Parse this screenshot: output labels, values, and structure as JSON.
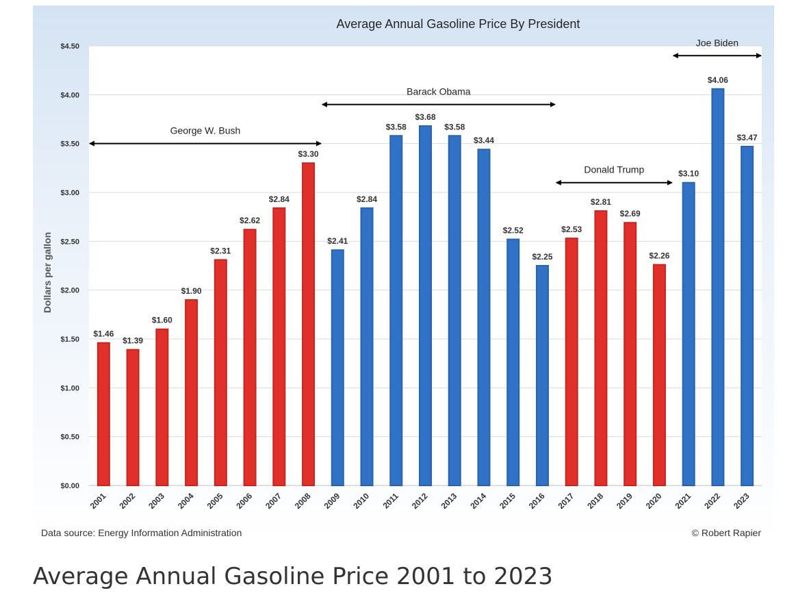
{
  "caption": "Average Annual Gasoline Price 2001 to 2023",
  "colors": {
    "republican": "#e1302a",
    "democrat": "#2f72c6",
    "bar_edge_republican": "#c52720",
    "bar_edge_democrat": "#2a63ad",
    "grid": "#d9d9d9",
    "text": "#333333"
  },
  "chart_data": {
    "type": "bar",
    "title": "Average Annual Gasoline Price By President",
    "ylabel": "Dollars per gallon",
    "xlabel": "",
    "ylim": [
      0,
      4.5
    ],
    "yticks": [
      0,
      0.5,
      1.0,
      1.5,
      2.0,
      2.5,
      3.0,
      3.5,
      4.0,
      4.5
    ],
    "ytick_labels": [
      "$0.00",
      "$0.50",
      "$1.00",
      "$1.50",
      "$2.00",
      "$2.50",
      "$3.00",
      "$3.50",
      "$4.00",
      "$4.50"
    ],
    "grid": true,
    "categories": [
      "2001",
      "2002",
      "2003",
      "2004",
      "2005",
      "2006",
      "2007",
      "2008",
      "2009",
      "2010",
      "2011",
      "2012",
      "2013",
      "2014",
      "2015",
      "2016",
      "2017",
      "2018",
      "2019",
      "2020",
      "2021",
      "2022",
      "2023"
    ],
    "values": [
      1.46,
      1.39,
      1.6,
      1.9,
      2.31,
      2.62,
      2.84,
      3.3,
      2.41,
      2.84,
      3.58,
      3.68,
      3.58,
      3.44,
      2.52,
      2.25,
      2.53,
      2.81,
      2.69,
      2.26,
      3.1,
      4.06,
      3.47
    ],
    "data_labels": [
      "$1.46",
      "$1.39",
      "$1.60",
      "$1.90",
      "$2.31",
      "$2.62",
      "$2.84",
      "$3.30",
      "$2.41",
      "$2.84",
      "$3.58",
      "$3.68",
      "$3.58",
      "$3.44",
      "$2.52",
      "$2.25",
      "$2.53",
      "$2.81",
      "$2.69",
      "$2.26",
      "$3.10",
      "$4.06",
      "$3.47"
    ],
    "party": [
      "R",
      "R",
      "R",
      "R",
      "R",
      "R",
      "R",
      "R",
      "D",
      "D",
      "D",
      "D",
      "D",
      "D",
      "D",
      "D",
      "R",
      "R",
      "R",
      "R",
      "D",
      "D",
      "D"
    ],
    "presidents": [
      {
        "name": "George W. Bush",
        "start_index": 0,
        "end_index": 7,
        "arrow_level": 3.5
      },
      {
        "name": "Barack Obama",
        "start_index": 8,
        "end_index": 15,
        "arrow_level": 3.9
      },
      {
        "name": "Donald Trump",
        "start_index": 16,
        "end_index": 19,
        "arrow_level": 3.1
      },
      {
        "name": "Joe Biden",
        "start_index": 20,
        "end_index": 22,
        "arrow_level": 4.4
      }
    ],
    "source": "Data source: Energy Information Administration",
    "credit": "© Robert Rapier"
  }
}
